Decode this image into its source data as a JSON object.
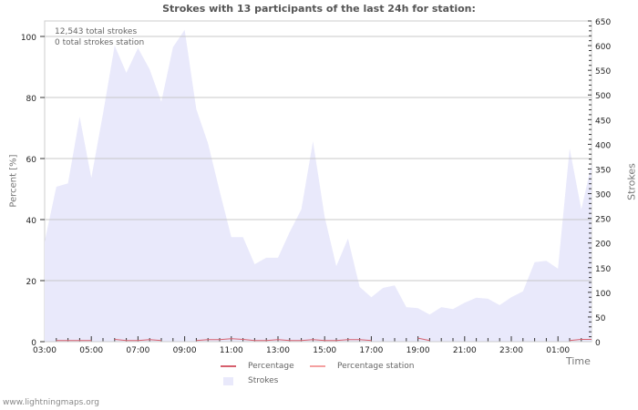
{
  "chart_data": {
    "type": "area",
    "title": "Strokes with 13 participants of the last 24h for station:",
    "xlabel": "Time",
    "ylabel_left": "Percent   [%]",
    "ylabel_right": "Strokes",
    "ylim_left": [
      0,
      105
    ],
    "ylim_right": [
      0,
      650
    ],
    "left_ticks": [
      0,
      20,
      40,
      60,
      80,
      100
    ],
    "right_ticks": [
      0,
      50,
      100,
      150,
      200,
      250,
      300,
      350,
      400,
      450,
      500,
      550,
      600,
      650
    ],
    "x_tick_labels": [
      "03:00",
      "05:00",
      "07:00",
      "09:00",
      "11:00",
      "13:00",
      "15:00",
      "17:00",
      "19:00",
      "21:00",
      "23:00",
      "01:00"
    ],
    "grid": true,
    "legend_position": "bottom",
    "annotations": [
      "12,543 total strokes",
      "0 total strokes station"
    ],
    "x_hours": [
      0,
      0.5,
      1,
      1.5,
      2,
      2.5,
      3,
      3.5,
      4,
      4.5,
      5,
      5.5,
      6,
      6.5,
      7,
      7.5,
      8,
      8.5,
      9,
      9.5,
      10,
      10.5,
      11,
      11.5,
      12,
      12.5,
      13,
      13.5,
      14,
      14.5,
      15,
      15.5,
      16,
      16.5,
      17,
      17.5,
      18,
      18.5,
      19,
      19.5,
      20,
      20.5,
      21,
      21.5,
      22,
      22.5,
      23,
      23.5
    ],
    "series": [
      {
        "name": "Strokes",
        "axis": "right",
        "color": "#e9e9fb",
        "values": [
          203,
          314,
          321,
          456,
          332,
          462,
          600,
          545,
          595,
          552,
          486,
          597,
          632,
          471,
          402,
          305,
          212,
          212,
          157,
          170,
          170,
          222,
          268,
          406,
          253,
          153,
          209,
          111,
          90,
          109,
          114,
          70,
          68,
          55,
          70,
          66,
          79,
          89,
          87,
          74,
          90,
          102,
          161,
          164,
          148,
          392,
          268,
          360
        ]
      },
      {
        "name": "Percentage",
        "axis": "left",
        "color": "#d6606e",
        "values": [
          null,
          0.2,
          0.2,
          0.2,
          0.2,
          null,
          0.6,
          0.2,
          0.2,
          0.5,
          0.2,
          null,
          null,
          0.2,
          0.5,
          0.5,
          0.8,
          0.6,
          0.2,
          0.2,
          0.5,
          0.2,
          0.2,
          0.5,
          0.2,
          0.2,
          0.5,
          0.5,
          0.2,
          null,
          null,
          null,
          1.0,
          0.2,
          null,
          null,
          null,
          null,
          null,
          null,
          null,
          null,
          null,
          null,
          null,
          0.2,
          0.6,
          0.6
        ]
      },
      {
        "name": "Percentage station",
        "axis": "left",
        "color": "#f4a0a0",
        "values": []
      }
    ]
  },
  "header": {
    "title": "Strokes with 13 participants of the last 24h for station:"
  },
  "annotations": {
    "total_strokes": "12,543 total strokes",
    "total_strokes_station": "0 total strokes station"
  },
  "axes": {
    "left_title": "Percent   [%]",
    "right_title": "Strokes",
    "x_title": "Time"
  },
  "legend": {
    "items": [
      {
        "label": "Percentage",
        "color": "#d6606e"
      },
      {
        "label": "Percentage station",
        "color": "#f4a0a0"
      },
      {
        "label": "Strokes",
        "color": "#e9e9fb"
      }
    ]
  },
  "footer": {
    "credit": "www.lightningmaps.org"
  },
  "colors": {
    "area_fill": "#e9e9fb",
    "grid": "#c8c8c8",
    "axis": "#cccccc",
    "percentage": "#d6606e",
    "percentage_station": "#f4a0a0"
  }
}
